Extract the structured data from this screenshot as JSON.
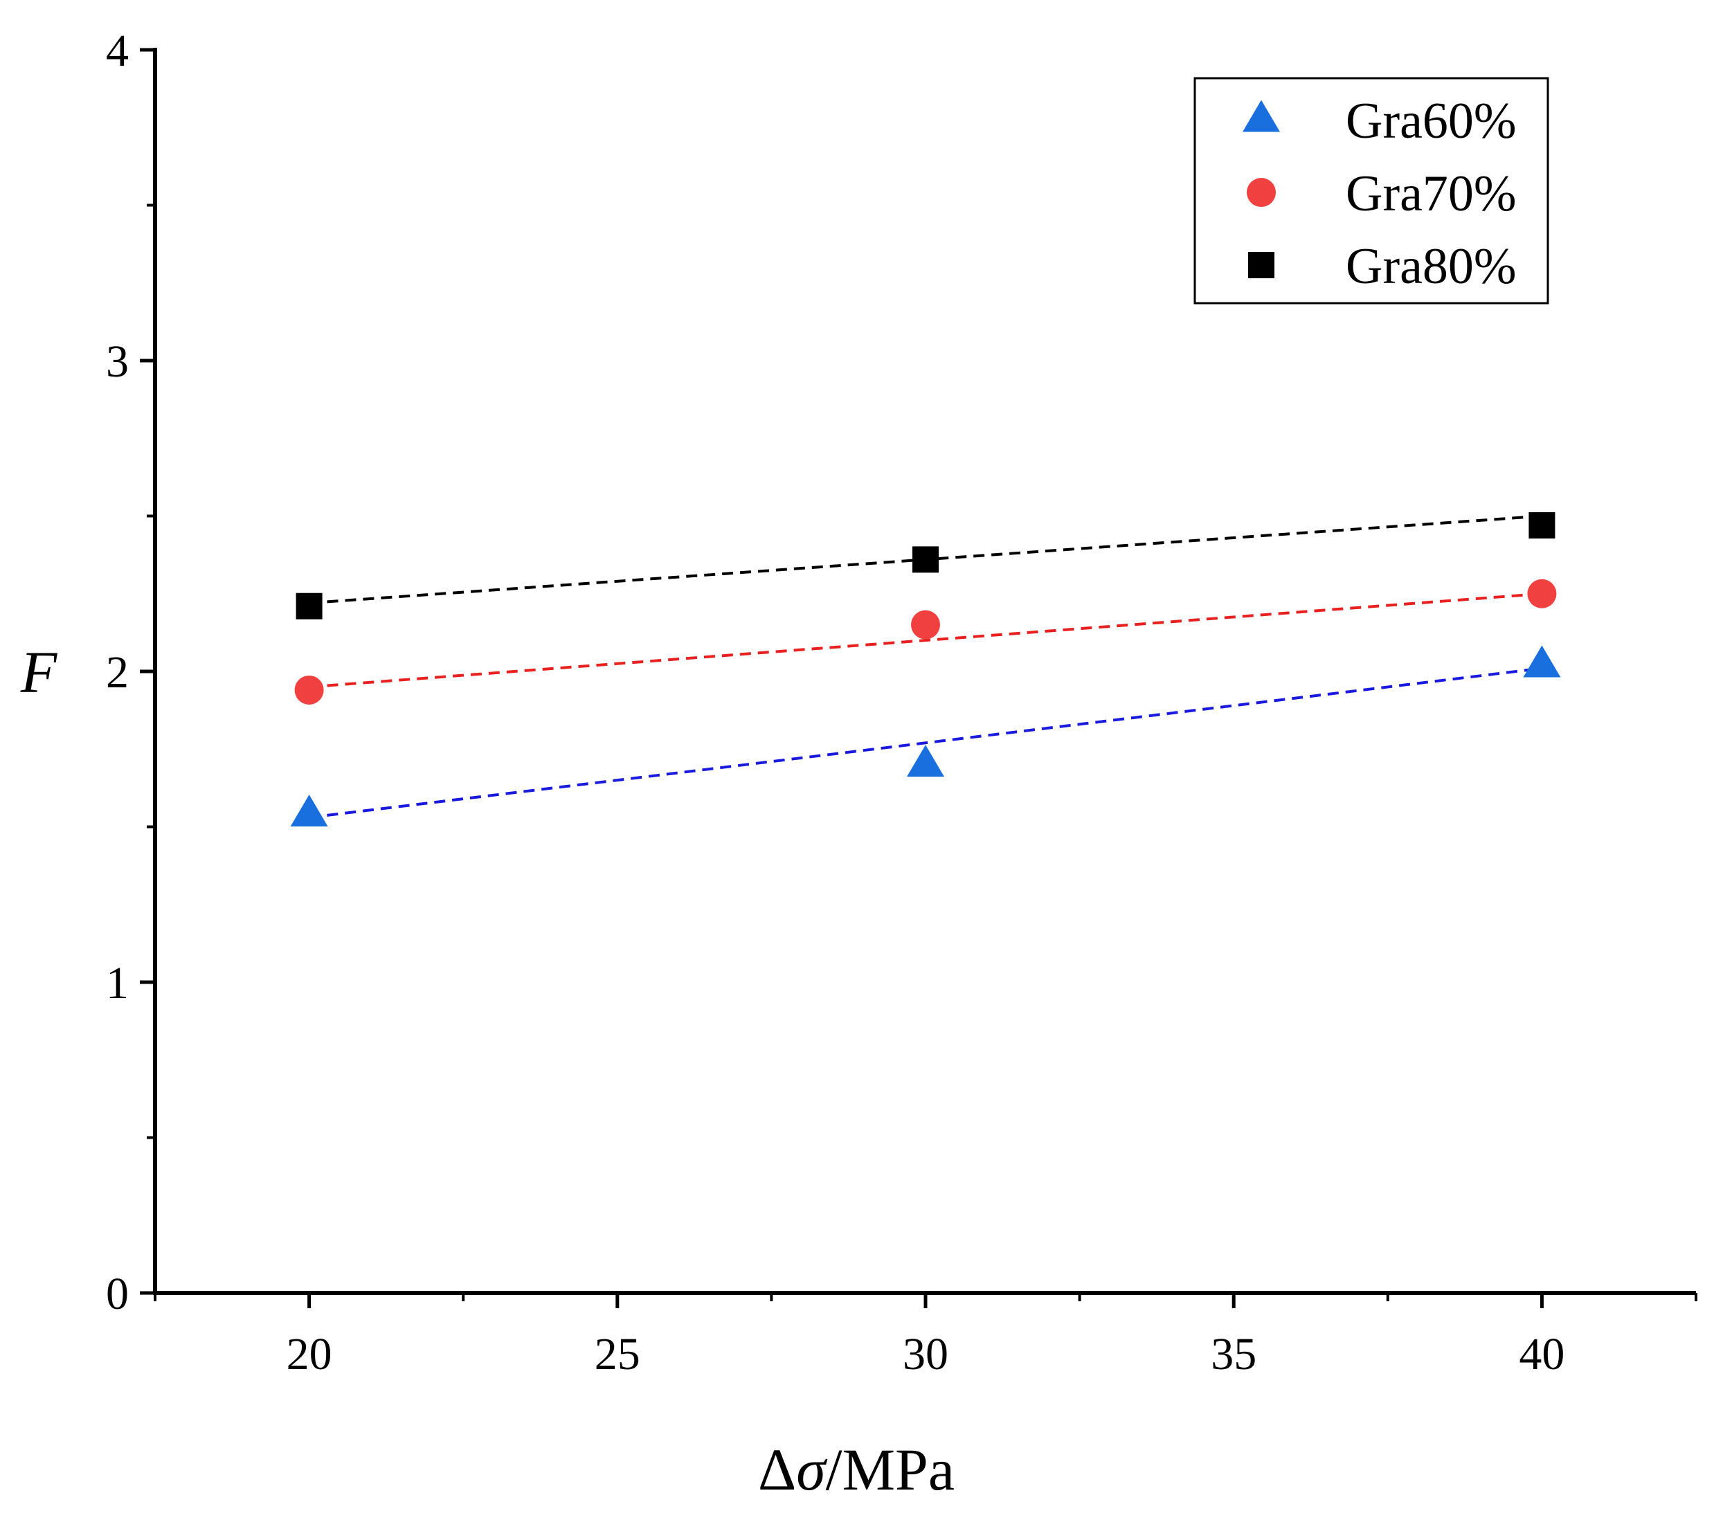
{
  "chart_data": {
    "type": "scatter",
    "title": "",
    "xlabel": "Δσ/MPa",
    "xlabel_parts": {
      "delta": "Δ",
      "sigma": "σ",
      "unit": "/MPa"
    },
    "ylabel": "F",
    "xlim": [
      17.5,
      42.5
    ],
    "ylim": [
      0,
      4
    ],
    "x_ticks": [
      20,
      25,
      30,
      35,
      40
    ],
    "y_ticks": [
      0,
      1,
      2,
      3,
      4
    ],
    "x_tick_labels": [
      "20",
      "25",
      "30",
      "35",
      "40"
    ],
    "y_tick_labels": [
      "0",
      "1",
      "2",
      "3",
      "4"
    ],
    "grid": false,
    "legend_position": "top-right",
    "series": [
      {
        "name": "Gra60%",
        "marker": "triangle",
        "color": "#1a6fdf",
        "x": [
          20,
          30,
          40
        ],
        "y": [
          1.54,
          1.7,
          2.02
        ],
        "fit": {
          "style": "dashed",
          "color": "#1a1adf",
          "x": [
            20,
            40
          ],
          "y": [
            1.53,
            2.01
          ]
        }
      },
      {
        "name": "Gra70%",
        "marker": "circle",
        "color": "#f04040",
        "x": [
          20,
          30,
          40
        ],
        "y": [
          1.94,
          2.15,
          2.25
        ],
        "fit": {
          "style": "dashed",
          "color": "#e82020",
          "x": [
            20,
            40
          ],
          "y": [
            1.95,
            2.25
          ]
        }
      },
      {
        "name": "Gra80%",
        "marker": "square",
        "color": "#000000",
        "x": [
          20,
          30,
          40
        ],
        "y": [
          2.21,
          2.36,
          2.47
        ],
        "fit": {
          "style": "dashed",
          "color": "#000000",
          "x": [
            20,
            40
          ],
          "y": [
            2.22,
            2.5
          ]
        }
      }
    ]
  }
}
